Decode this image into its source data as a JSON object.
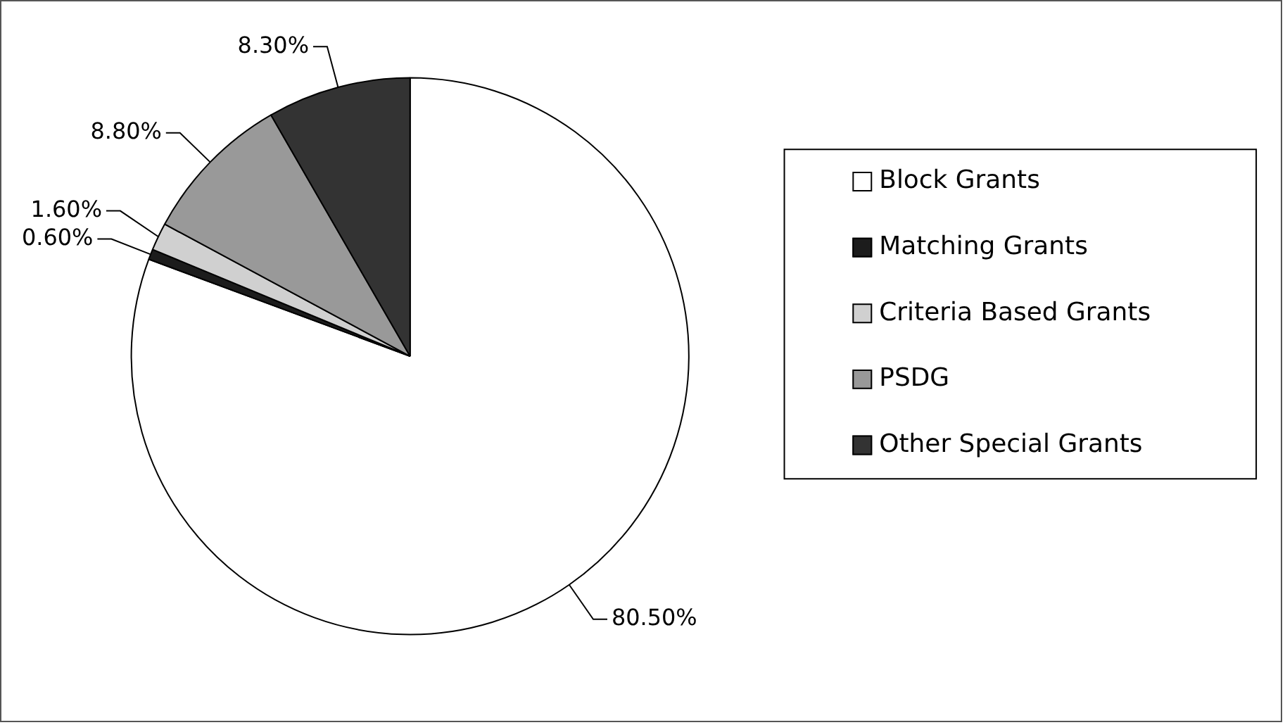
{
  "chart_data": {
    "type": "pie",
    "categories": [
      "Block Grants",
      "Matching Grants",
      "Criteria Based Grants",
      "PSDG",
      "Other Special Grants"
    ],
    "values": [
      80.5,
      0.6,
      1.6,
      8.8,
      8.3
    ],
    "value_labels": [
      "80.50%",
      "0.60%",
      "1.60%",
      "8.80%",
      "8.30%"
    ],
    "colors": [
      "#ffffff",
      "#1c1c1c",
      "#d0d0d0",
      "#999999",
      "#333333"
    ],
    "legend": "right"
  }
}
